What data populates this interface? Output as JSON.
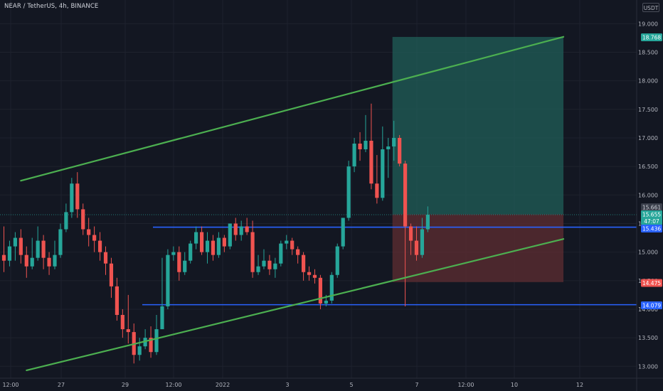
{
  "header": {
    "title": "NEAR / TetherUS, 4h, BINANCE",
    "currency": "USDT"
  },
  "colors": {
    "background": "#131722",
    "up": "#26a69a",
    "down": "#ef5350",
    "channel": "#4caf50",
    "level_line": "#2962ff",
    "profit_zone": "#1f5a55",
    "loss_zone": "#5a2c31",
    "target_label": "#26a69a",
    "stop_label": "#ef5350",
    "level_label": "#2962ff"
  },
  "chart_data": {
    "type": "candlestick",
    "title": "NEAR / TetherUS, 4h, BINANCE",
    "ylabel": "USDT",
    "ylim": [
      12.85,
      19.25
    ],
    "y_ticks": [
      "19.000",
      "18.500",
      "18.000",
      "17.500",
      "17.000",
      "16.500",
      "16.000",
      "15.500",
      "15.000",
      "14.500",
      "14.000",
      "13.500",
      "13.000"
    ],
    "x_ticks": [
      "12:00",
      "27",
      "29",
      "12:00",
      "2022",
      "3",
      "5",
      "7",
      "12:00",
      "10",
      "12"
    ],
    "price_labels": [
      {
        "label": "18.768",
        "kind": "target"
      },
      {
        "label": "15.661",
        "kind": "last"
      },
      {
        "label": "15.655",
        "kind": "current"
      },
      {
        "label": "47:07",
        "kind": "countdown"
      },
      {
        "label": "15.436",
        "kind": "level"
      },
      {
        "label": "14.475",
        "kind": "stop"
      },
      {
        "label": "14.079",
        "kind": "level"
      }
    ],
    "levels": [
      15.436,
      14.079
    ],
    "channel_upper": {
      "from": {
        "candle": 3,
        "price": 16.25
      },
      "to": {
        "candle": 99,
        "price": 18.77
      }
    },
    "channel_lower": {
      "from": {
        "candle": 4,
        "price": 12.93
      },
      "to": {
        "candle": 99,
        "price": 15.23
      }
    },
    "position": {
      "entry": 15.661,
      "target": 18.768,
      "stop": 14.475,
      "start_candle": 69,
      "end_candle": 99
    },
    "candles": [
      [
        14.95,
        14.85,
        15.45,
        14.65
      ],
      [
        14.85,
        15.1,
        15.2,
        14.75
      ],
      [
        15.1,
        15.25,
        15.35,
        14.85
      ],
      [
        15.25,
        14.95,
        15.4,
        14.8
      ],
      [
        14.95,
        14.75,
        15.1,
        14.55
      ],
      [
        14.75,
        14.9,
        15.25,
        14.7
      ],
      [
        14.9,
        15.2,
        15.45,
        14.85
      ],
      [
        15.2,
        14.9,
        15.3,
        14.7
      ],
      [
        14.9,
        14.75,
        15.0,
        14.6
      ],
      [
        14.75,
        14.95,
        15.2,
        14.7
      ],
      [
        14.95,
        15.4,
        15.5,
        14.9
      ],
      [
        15.4,
        15.7,
        15.85,
        15.35
      ],
      [
        15.7,
        16.2,
        16.3,
        15.6
      ],
      [
        16.2,
        15.75,
        16.4,
        15.6
      ],
      [
        15.75,
        15.4,
        15.85,
        15.3
      ],
      [
        15.4,
        15.3,
        15.6,
        15.1
      ],
      [
        15.3,
        15.2,
        15.45,
        15.0
      ],
      [
        15.2,
        15.0,
        15.35,
        14.85
      ],
      [
        15.0,
        14.8,
        15.1,
        14.6
      ],
      [
        14.8,
        14.4,
        14.9,
        14.2
      ],
      [
        14.4,
        13.9,
        14.55,
        13.8
      ],
      [
        13.9,
        13.65,
        14.0,
        13.5
      ],
      [
        13.65,
        13.6,
        14.25,
        13.4
      ],
      [
        13.6,
        13.2,
        13.75,
        13.05
      ],
      [
        13.2,
        13.35,
        13.5,
        13.1
      ],
      [
        13.35,
        13.5,
        13.65,
        13.3
      ],
      [
        13.5,
        13.25,
        13.7,
        13.15
      ],
      [
        13.25,
        13.65,
        13.9,
        13.2
      ],
      [
        13.65,
        14.05,
        14.9,
        13.9
      ],
      [
        14.05,
        14.95,
        15.05,
        14.0
      ],
      [
        14.95,
        15.0,
        15.1,
        14.85
      ],
      [
        15.0,
        14.65,
        15.1,
        14.5
      ],
      [
        14.65,
        14.85,
        15.0,
        14.6
      ],
      [
        14.85,
        15.15,
        15.2,
        14.8
      ],
      [
        15.15,
        15.35,
        15.45,
        15.05
      ],
      [
        15.35,
        15.0,
        15.45,
        14.95
      ],
      [
        15.0,
        15.2,
        15.35,
        14.8
      ],
      [
        15.2,
        14.95,
        15.3,
        14.85
      ],
      [
        14.95,
        15.25,
        15.35,
        14.9
      ],
      [
        15.25,
        15.1,
        15.3,
        15.0
      ],
      [
        15.1,
        15.5,
        15.5,
        15.05
      ],
      [
        15.5,
        15.3,
        15.6,
        15.2
      ],
      [
        15.3,
        15.45,
        15.55,
        15.2
      ],
      [
        15.45,
        15.35,
        15.6,
        15.3
      ],
      [
        15.35,
        14.65,
        15.55,
        14.55
      ],
      [
        14.65,
        14.75,
        14.95,
        14.6
      ],
      [
        14.75,
        14.85,
        15.05,
        14.7
      ],
      [
        14.85,
        14.7,
        14.95,
        14.6
      ],
      [
        14.7,
        14.8,
        14.9,
        14.55
      ],
      [
        14.8,
        15.15,
        15.2,
        14.75
      ],
      [
        15.15,
        15.2,
        15.3,
        15.05
      ],
      [
        15.2,
        15.05,
        15.25,
        14.95
      ],
      [
        15.05,
        14.95,
        15.1,
        14.8
      ],
      [
        14.95,
        14.65,
        15.0,
        14.5
      ],
      [
        14.65,
        14.6,
        14.75,
        14.5
      ],
      [
        14.6,
        14.55,
        14.7,
        14.45
      ],
      [
        14.55,
        14.1,
        14.6,
        14.0
      ],
      [
        14.1,
        14.15,
        14.25,
        14.05
      ],
      [
        14.15,
        14.6,
        14.65,
        14.1
      ],
      [
        14.6,
        15.1,
        15.15,
        14.55
      ],
      [
        15.1,
        15.6,
        15.6,
        15.05
      ],
      [
        15.6,
        16.5,
        16.6,
        15.55
      ],
      [
        16.5,
        16.9,
        17.0,
        16.4
      ],
      [
        16.9,
        16.8,
        17.1,
        16.6
      ],
      [
        16.8,
        16.95,
        17.4,
        16.75
      ],
      [
        16.95,
        16.2,
        17.6,
        16.1
      ],
      [
        16.2,
        15.95,
        16.7,
        15.85
      ],
      [
        15.95,
        16.8,
        17.2,
        15.9
      ],
      [
        16.8,
        16.85,
        17.0,
        16.3
      ],
      [
        16.85,
        17.0,
        17.3,
        16.6
      ],
      [
        17.0,
        16.55,
        17.05,
        16.5
      ],
      [
        16.55,
        15.45,
        16.6,
        14.05
      ],
      [
        15.45,
        15.2,
        15.5,
        14.95
      ],
      [
        15.2,
        14.95,
        15.45,
        14.85
      ],
      [
        14.95,
        15.4,
        15.6,
        14.9
      ],
      [
        15.4,
        15.655,
        15.8,
        15.35
      ]
    ]
  }
}
